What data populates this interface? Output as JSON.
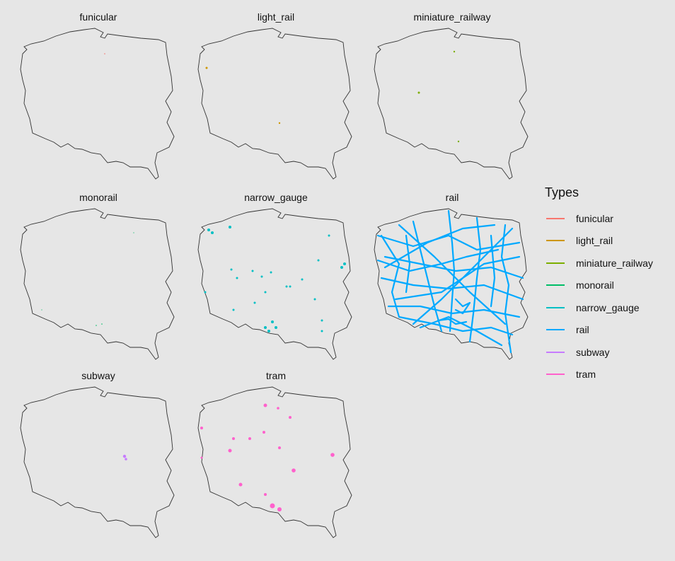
{
  "legend": {
    "title": "Types",
    "items": [
      {
        "label": "funicular",
        "color": "#F8766D"
      },
      {
        "label": "light_rail",
        "color": "#CD9600"
      },
      {
        "label": "miniature_railway",
        "color": "#7CAE00"
      },
      {
        "label": "monorail",
        "color": "#00BE67"
      },
      {
        "label": "narrow_gauge",
        "color": "#00BFC4"
      },
      {
        "label": "rail",
        "color": "#00A9FF"
      },
      {
        "label": "subway",
        "color": "#C77CFF"
      },
      {
        "label": "tram",
        "color": "#FF61CC"
      }
    ]
  },
  "panels": [
    {
      "title": "funicular",
      "type": "funicular"
    },
    {
      "title": "light_rail",
      "type": "light_rail"
    },
    {
      "title": "miniature_railway",
      "type": "miniature_railway"
    },
    {
      "title": "monorail",
      "type": "monorail"
    },
    {
      "title": "narrow_gauge",
      "type": "narrow_gauge"
    },
    {
      "title": "rail",
      "type": "rail"
    },
    {
      "title": "subway",
      "type": "subway"
    },
    {
      "title": "tram",
      "type": "tram"
    }
  ]
}
